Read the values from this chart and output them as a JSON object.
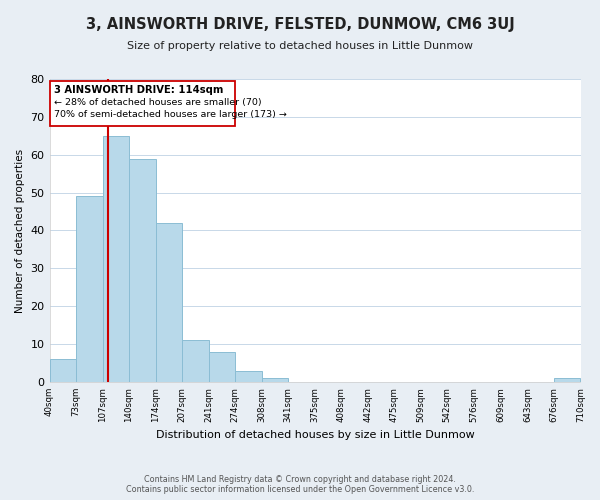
{
  "title": "3, AINSWORTH DRIVE, FELSTED, DUNMOW, CM6 3UJ",
  "subtitle": "Size of property relative to detached houses in Little Dunmow",
  "xlabel": "Distribution of detached houses by size in Little Dunmow",
  "ylabel": "Number of detached properties",
  "bin_edges": [
    40,
    73,
    107,
    140,
    174,
    207,
    241,
    274,
    308,
    341,
    375,
    408,
    442,
    475,
    509,
    542,
    576,
    609,
    643,
    676,
    710
  ],
  "bar_heights": [
    6,
    49,
    65,
    59,
    42,
    11,
    8,
    3,
    1,
    0,
    0,
    0,
    0,
    0,
    0,
    0,
    0,
    0,
    0,
    1
  ],
  "bar_color": "#b8d9ea",
  "bar_edgecolor": "#8bbdd4",
  "vline_x": 114,
  "vline_color": "#cc0000",
  "annotation_title": "3 AINSWORTH DRIVE: 114sqm",
  "annotation_line1": "← 28% of detached houses are smaller (70)",
  "annotation_line2": "70% of semi-detached houses are larger (173) →",
  "annotation_box_edgecolor": "#cc0000",
  "tick_labels": [
    "40sqm",
    "73sqm",
    "107sqm",
    "140sqm",
    "174sqm",
    "207sqm",
    "241sqm",
    "274sqm",
    "308sqm",
    "341sqm",
    "375sqm",
    "408sqm",
    "442sqm",
    "475sqm",
    "509sqm",
    "542sqm",
    "576sqm",
    "609sqm",
    "643sqm",
    "676sqm",
    "710sqm"
  ],
  "ylim": [
    0,
    80
  ],
  "yticks": [
    0,
    10,
    20,
    30,
    40,
    50,
    60,
    70,
    80
  ],
  "footer1": "Contains HM Land Registry data © Crown copyright and database right 2024.",
  "footer2": "Contains public sector information licensed under the Open Government Licence v3.0.",
  "bg_color": "#e8eef4",
  "plot_bg_color": "#ffffff",
  "grid_color": "#c8d8e8"
}
